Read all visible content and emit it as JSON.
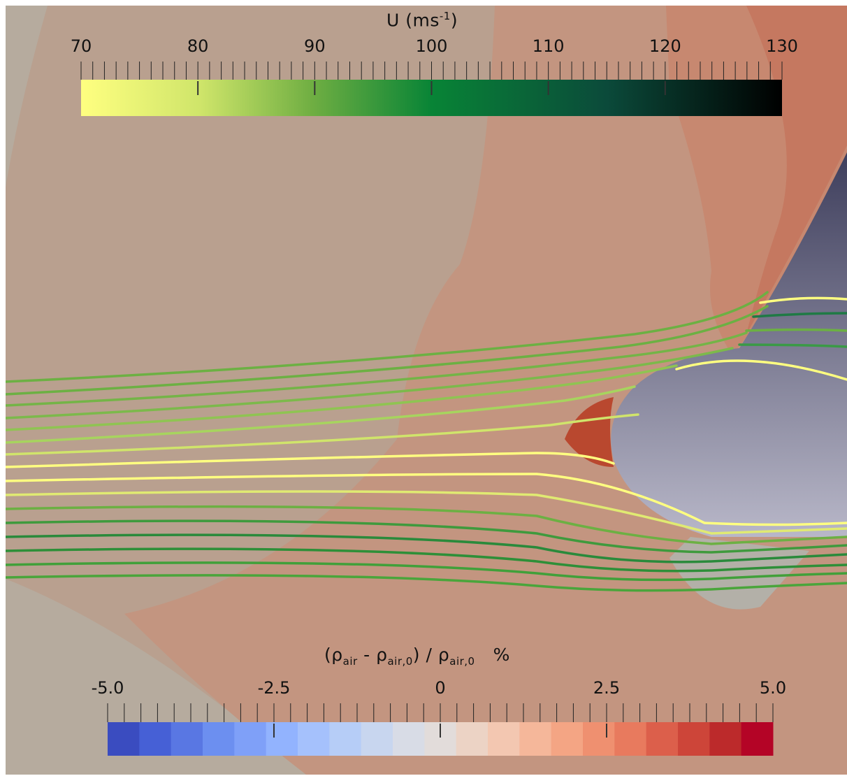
{
  "colors": {
    "background": "#b9a08f",
    "background_gray": "#b6ab9e",
    "density_positive": "#c8907a",
    "density_high": "#b9482f",
    "airfoil_top": "#3f3f5a",
    "airfoil_bottom": "#b3b2c4",
    "streamline_slow": "#ffff80",
    "streamline_mid": "#6cb043",
    "streamline_fast": "#064f37"
  },
  "velocity_bar": {
    "title": "U (ms",
    "title_sup": "-1",
    "title_close": ")",
    "min": 70,
    "max": 130,
    "tick_labels": [
      "70",
      "80",
      "90",
      "100",
      "110",
      "120",
      "130"
    ],
    "colormap": [
      "#ffff80",
      "#b1d864",
      "#5ea73c",
      "#068234",
      "#0a5b3f",
      "#000000"
    ]
  },
  "density_bar": {
    "title_rho": "(ρ",
    "title_sub1": "air",
    "title_mid": " -  ρ",
    "title_sub2": "air,0",
    "title_div": ") / ρ",
    "title_sub3": "air,0",
    "title_unit": "%",
    "min": -5.0,
    "max": 5.0,
    "tick_labels": [
      "-5.0",
      "-2.5",
      "0",
      "2.5",
      "5.0"
    ],
    "bands": [
      "#3a4cc0",
      "#4660d6",
      "#5977e3",
      "#6c8ff0",
      "#7fa0f8",
      "#92b3fe",
      "#a5c1fc",
      "#b6cdf7",
      "#c8d6ef",
      "#d8dce6",
      "#e2dcda",
      "#ecd3c5",
      "#f3c7b1",
      "#f5b79a",
      "#f4a584",
      "#ef9070",
      "#e87a5e",
      "#dc5f4b",
      "#cd4539",
      "#bc2a2b",
      "#b40426"
    ]
  }
}
